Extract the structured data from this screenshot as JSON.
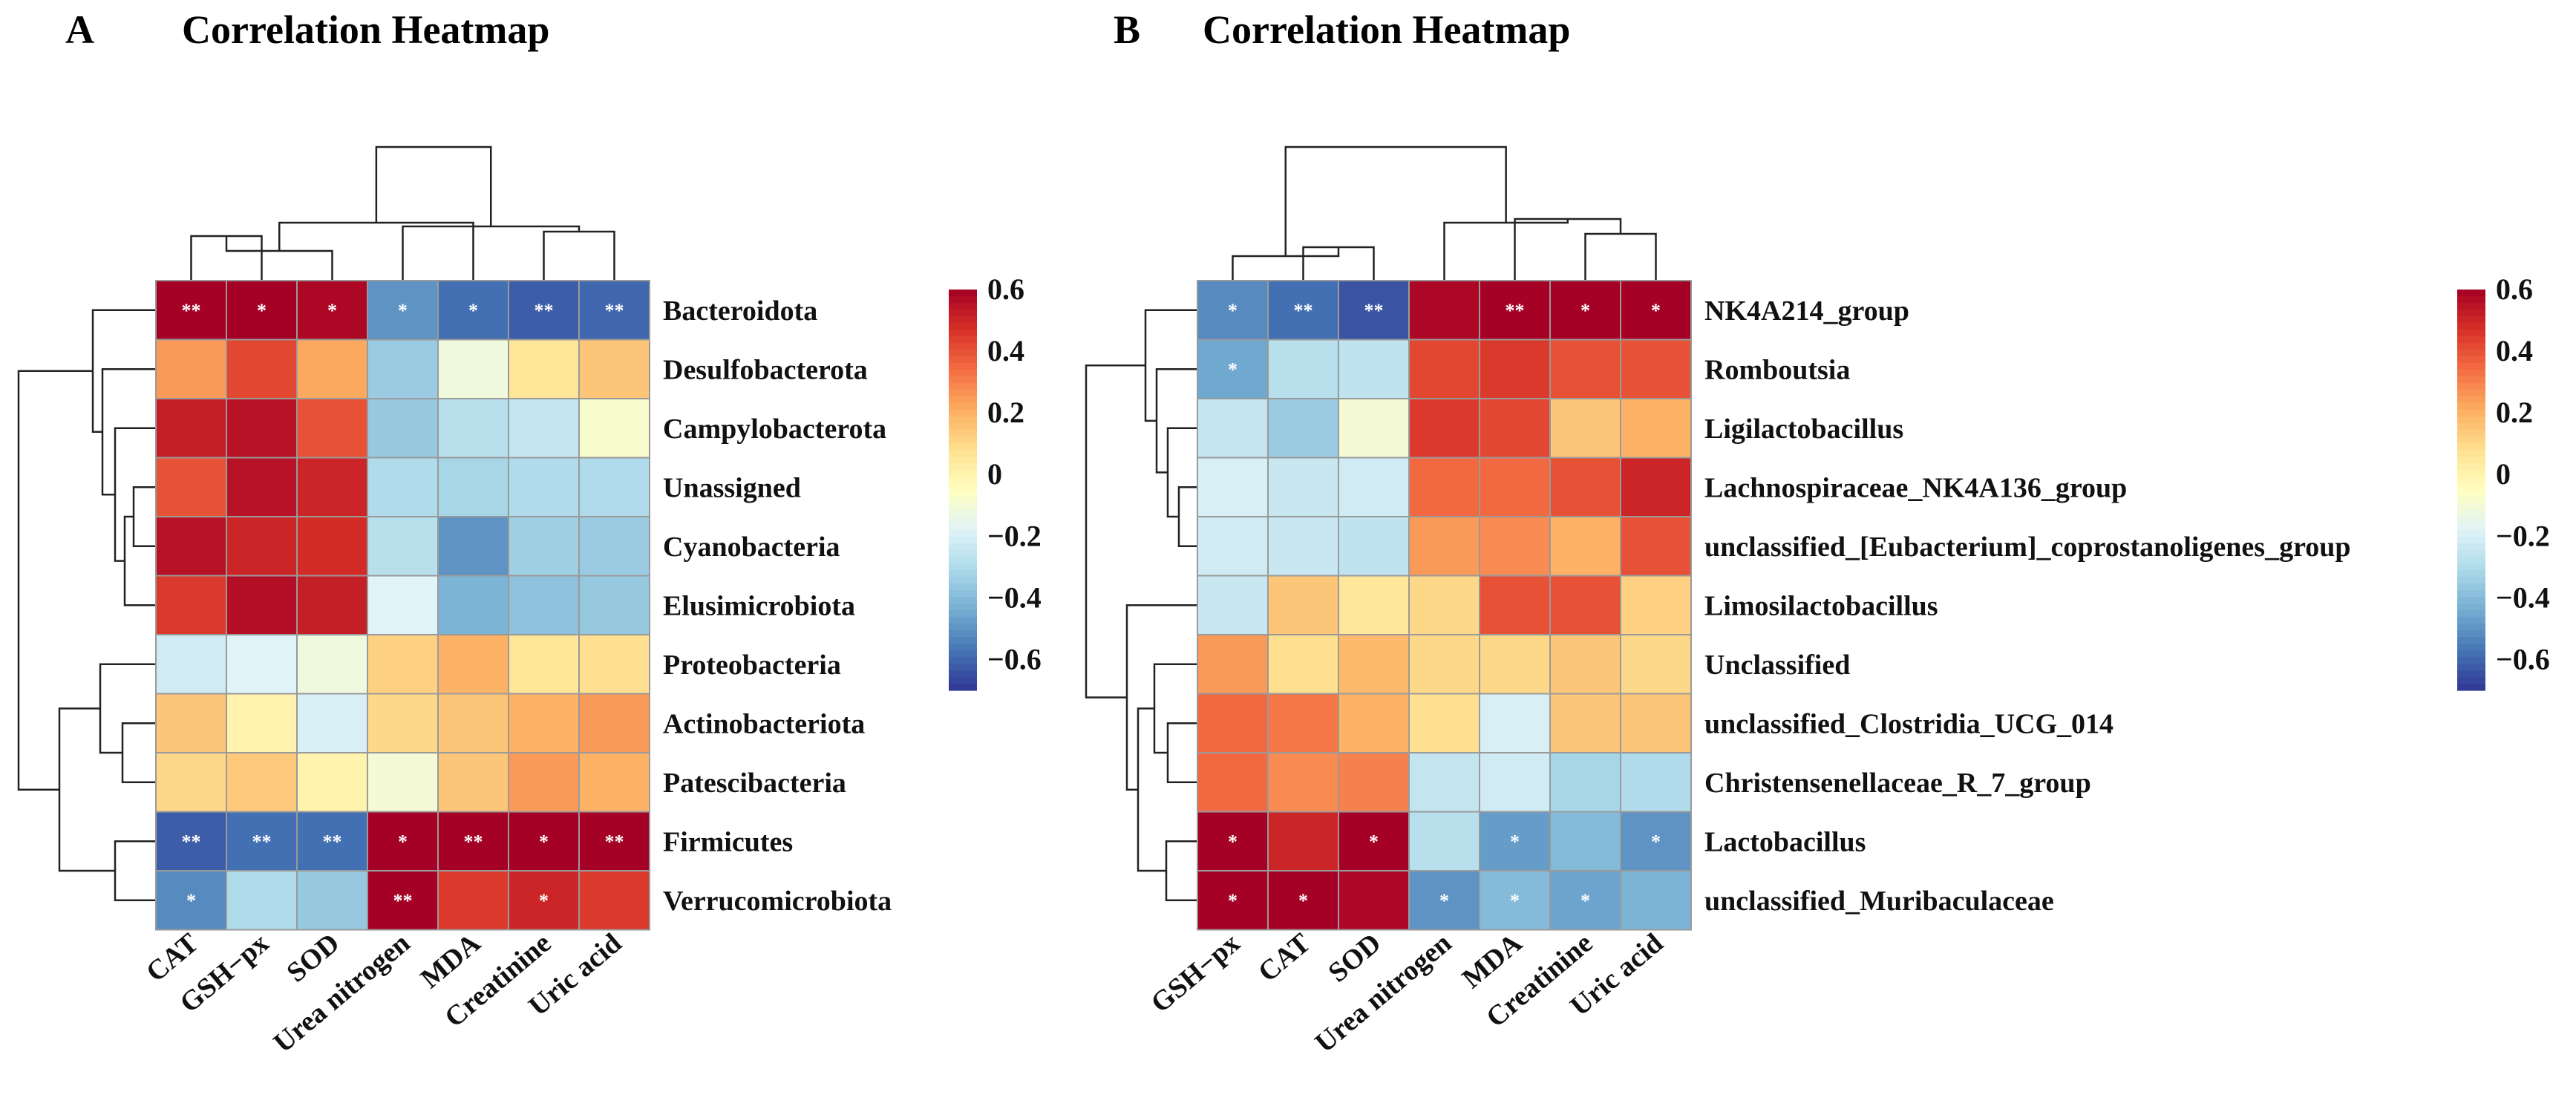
{
  "colors": {
    "scale": [
      "#313695",
      "#4575b4",
      "#74add1",
      "#abd9e9",
      "#e0f3f8",
      "#ffffbf",
      "#fee090",
      "#fdae61",
      "#f46d43",
      "#d73027",
      "#a50026"
    ],
    "cell_border": "#9a9a9a",
    "significance_text": "#ffffff"
  },
  "chart_data": [
    {
      "type": "heatmap",
      "panel_letter": "A",
      "title": "Correlation Heatmap",
      "columns": [
        "CAT",
        "GSH−px",
        "SOD",
        "Urea nitrogen",
        "MDA",
        "Creatinine",
        "Uric acid"
      ],
      "rows": [
        "Bacteroidota",
        "Desulfobacterota",
        "Campylobacterota",
        "Unassigned",
        "Cyanobacteria",
        "Elusimicrobiota",
        "Proteobacteria",
        "Actinobacteriota",
        "Patescibacteria",
        "Firmicutes",
        "Verrucomicrobiota"
      ],
      "values": [
        [
          0.62,
          0.6,
          0.58,
          -0.5,
          -0.58,
          -0.62,
          -0.6
        ],
        [
          0.25,
          0.42,
          0.22,
          -0.35,
          -0.12,
          0.06,
          0.15
        ],
        [
          0.52,
          0.55,
          0.4,
          -0.36,
          -0.28,
          -0.25,
          -0.08
        ],
        [
          0.4,
          0.55,
          0.5,
          -0.3,
          -0.32,
          -0.3,
          -0.3
        ],
        [
          0.55,
          0.5,
          0.48,
          -0.28,
          -0.5,
          -0.34,
          -0.35
        ],
        [
          0.45,
          0.56,
          0.52,
          -0.18,
          -0.42,
          -0.38,
          -0.36
        ],
        [
          -0.22,
          -0.18,
          -0.12,
          0.12,
          0.2,
          0.06,
          0.08
        ],
        [
          0.15,
          0.0,
          -0.2,
          0.1,
          0.15,
          0.2,
          0.25
        ],
        [
          0.1,
          0.14,
          0.0,
          -0.1,
          0.15,
          0.25,
          0.2
        ],
        [
          -0.62,
          -0.58,
          -0.58,
          0.62,
          0.6,
          0.6,
          0.62
        ],
        [
          -0.52,
          -0.3,
          -0.36,
          0.6,
          0.45,
          0.5,
          0.45
        ]
      ],
      "significance": [
        [
          "**",
          "*",
          "*",
          "*",
          "*",
          "**",
          "**"
        ],
        [
          "",
          "",
          "",
          "",
          "",
          "",
          ""
        ],
        [
          "",
          "",
          "",
          "",
          "",
          "",
          ""
        ],
        [
          "",
          "",
          "",
          "",
          "",
          "",
          ""
        ],
        [
          "",
          "",
          "",
          "",
          "",
          "",
          ""
        ],
        [
          "",
          "",
          "",
          "",
          "",
          "",
          ""
        ],
        [
          "",
          "",
          "",
          "",
          "",
          "",
          ""
        ],
        [
          "",
          "",
          "",
          "",
          "",
          "",
          ""
        ],
        [
          "",
          "",
          "",
          "",
          "",
          "",
          ""
        ],
        [
          "**",
          "**",
          "**",
          "*",
          "**",
          "*",
          "**"
        ],
        [
          "*",
          "",
          "",
          "**",
          "",
          "*",
          ""
        ]
      ],
      "legend": {
        "ticks": [
          0.6,
          0.4,
          0.2,
          0,
          -0.2,
          -0.4,
          -0.6
        ],
        "labels": [
          "0.6",
          "0.4",
          "0.2",
          "0",
          "−0.2",
          "−0.4",
          "−0.6"
        ],
        "range": [
          -0.7,
          0.6
        ]
      }
    },
    {
      "type": "heatmap",
      "panel_letter": "B",
      "title": "Correlation Heatmap",
      "columns": [
        "GSH−px",
        "CAT",
        "SOD",
        "Urea nitrogen",
        "MDA",
        "Creatinine",
        "Uric acid"
      ],
      "rows": [
        "NK4A214_group",
        "Romboutsia",
        "Ligilactobacillus",
        "Lachnospiraceae_NK4A136_group",
        "unclassified_[Eubacterium]_coprostanoligenes_group",
        "Limosilactobacillus",
        "Unclassified",
        "unclassified_Clostridia_UCG_014",
        "Christensenellaceae_R_7_group",
        "Lactobacillus",
        "unclassified_Muribaculaceae"
      ],
      "values": [
        [
          -0.52,
          -0.58,
          -0.64,
          0.58,
          0.6,
          0.62,
          0.62
        ],
        [
          -0.45,
          -0.28,
          -0.26,
          0.42,
          0.45,
          0.4,
          0.4
        ],
        [
          -0.25,
          -0.35,
          -0.1,
          0.45,
          0.42,
          0.15,
          0.2
        ],
        [
          -0.2,
          -0.24,
          -0.22,
          0.35,
          0.35,
          0.4,
          0.5
        ],
        [
          -0.22,
          -0.24,
          -0.26,
          0.25,
          0.28,
          0.2,
          0.4
        ],
        [
          -0.24,
          0.15,
          0.05,
          0.1,
          0.4,
          0.4,
          0.12
        ],
        [
          0.25,
          0.08,
          0.18,
          0.1,
          0.1,
          0.15,
          0.1
        ],
        [
          0.35,
          0.32,
          0.2,
          0.08,
          -0.2,
          0.15,
          0.15
        ],
        [
          0.35,
          0.28,
          0.3,
          -0.25,
          -0.22,
          -0.32,
          -0.3
        ],
        [
          0.62,
          0.5,
          0.62,
          -0.28,
          -0.48,
          -0.4,
          -0.5
        ],
        [
          0.62,
          0.62,
          0.58,
          -0.5,
          -0.4,
          -0.46,
          -0.42
        ]
      ],
      "significance": [
        [
          "*",
          "**",
          "**",
          "",
          "**",
          "*",
          "*"
        ],
        [
          "*",
          "",
          "",
          "",
          "",
          "",
          ""
        ],
        [
          "",
          "",
          "",
          "",
          "",
          "",
          ""
        ],
        [
          "",
          "",
          "",
          "",
          "",
          "",
          ""
        ],
        [
          "",
          "",
          "",
          "",
          "",
          "",
          ""
        ],
        [
          "",
          "",
          "",
          "",
          "",
          "",
          ""
        ],
        [
          "",
          "",
          "",
          "",
          "",
          "",
          ""
        ],
        [
          "",
          "",
          "",
          "",
          "",
          "",
          ""
        ],
        [
          "",
          "",
          "",
          "",
          "",
          "",
          ""
        ],
        [
          "*",
          "",
          "*",
          "",
          "*",
          "",
          "*"
        ],
        [
          "*",
          "*",
          "",
          "*",
          "*",
          "*",
          ""
        ]
      ],
      "legend": {
        "ticks": [
          0.6,
          0.4,
          0.2,
          0,
          -0.2,
          -0.4,
          -0.6
        ],
        "labels": [
          "0.6",
          "0.4",
          "0.2",
          "0",
          "−0.2",
          "−0.4",
          "−0.6"
        ],
        "range": [
          -0.7,
          0.6
        ]
      }
    }
  ]
}
